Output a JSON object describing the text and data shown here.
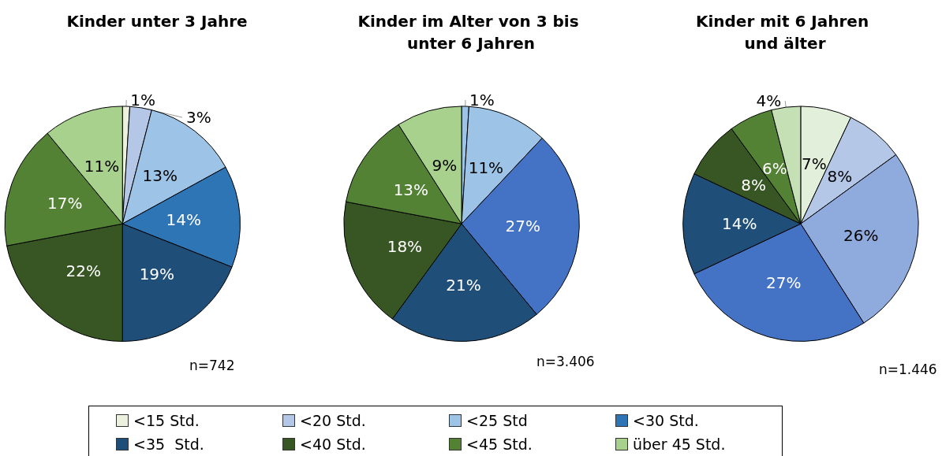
{
  "chart_data": [
    {
      "type": "pie",
      "title": "Kinder unter 3 Jahre",
      "categories": [
        "<15 Std.",
        "<20 Std.",
        "<25 Std",
        "<30 Std.",
        "<35  Std.",
        "<40 Std.",
        "<45 Std.",
        "über 45 Std."
      ],
      "values": [
        1,
        3,
        13,
        14,
        19,
        22,
        17,
        11
      ],
      "value_labels": [
        "1%",
        "3%",
        "13%",
        "14%",
        "19%",
        "22%",
        "17%",
        "11%"
      ],
      "colors": [
        "#ebf1de",
        "#b4c7e7",
        "#9dc3e6",
        "#2e75b6",
        "#1f4e79",
        "#375623",
        "#548235",
        "#a9d18e"
      ],
      "annotations": [
        "n=742"
      ],
      "legend": "bottom"
    },
    {
      "type": "pie",
      "title": "Kinder im Alter von 3 bis unter 6 Jahren",
      "categories": [
        null,
        null,
        null,
        null,
        null,
        null,
        null,
        null
      ],
      "values": [
        0,
        1,
        11,
        27,
        21,
        18,
        13,
        9
      ],
      "value_labels": [
        null,
        "1%",
        "11%",
        "27%",
        "21%",
        "18%",
        "13%",
        "9%"
      ],
      "colors": [
        "#ebf1de",
        "#9dc3e6",
        "#9dc3e6",
        "#4472c4",
        "#1f4e79",
        "#375623",
        "#548235",
        "#a9d18e"
      ],
      "annotations": [
        "n=3.406"
      ]
    },
    {
      "type": "pie",
      "title": "Kinder mit 6 Jahren und älter",
      "categories": [
        null,
        null,
        null,
        null,
        null,
        null,
        null,
        null
      ],
      "values": [
        7,
        8,
        26,
        27,
        14,
        8,
        6,
        4
      ],
      "value_labels": [
        "7%",
        "8%",
        "26%",
        "27%",
        "14%",
        "8%",
        "6%",
        "4%"
      ],
      "colors": [
        "#e2efda",
        "#b4c7e7",
        "#8faadc",
        "#4472c4",
        "#1f4e79",
        "#375623",
        "#548235",
        "#c5e0b4"
      ],
      "annotations": [
        "n=1.446"
      ]
    }
  ]
}
